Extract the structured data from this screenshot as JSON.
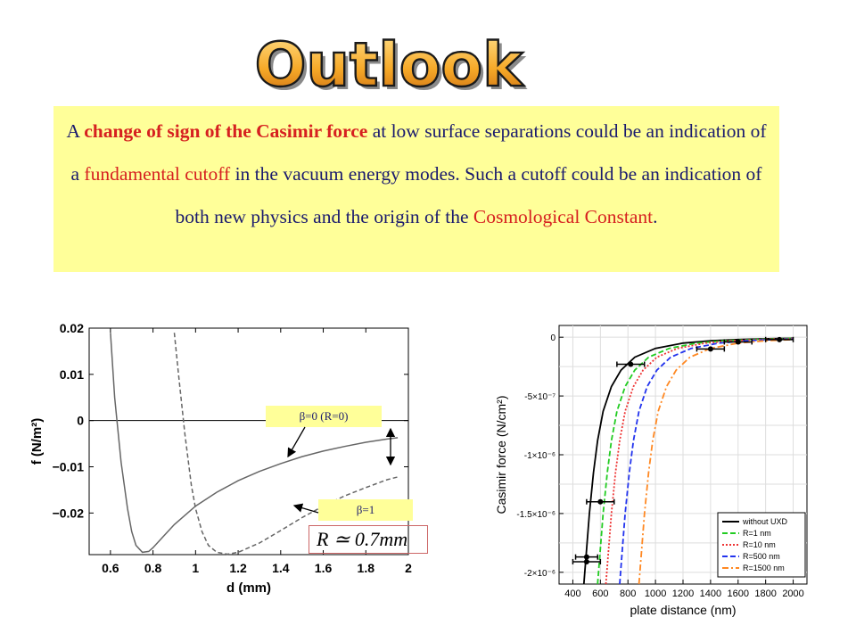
{
  "slide": {
    "title": "Outlook",
    "title_color": "#f0a030",
    "text_parts": {
      "p1": "A ",
      "p2": "change of sign of the Casimir force",
      "p3": " at low surface separations could be an indication of a ",
      "p4": "fundamental cutoff",
      "p5": " in the vacuum energy modes. Such a cutoff could be an indication of both new physics and the origin of the ",
      "p6": "Cosmological Constant",
      "p7": "."
    },
    "box_color": "#ffff99",
    "highlight_color": "#d62020",
    "label_beta0": "β=0  (R=0)",
    "label_beta1": "β=1",
    "label_R": "R ≃ 0.7mm"
  },
  "chart_data": [
    {
      "type": "line",
      "xlabel": "d (mm)",
      "ylabel": "f (N/m²)",
      "xlim": [
        0.5,
        2.0
      ],
      "ylim": [
        -0.029,
        0.02
      ],
      "xticks": [
        "0.6",
        "0.8",
        "1",
        "1.2",
        "1.4",
        "1.6",
        "1.8",
        "2"
      ],
      "yticks": [
        "0.02",
        "0.01",
        "0",
        "−0.01",
        "−0.02"
      ],
      "series": [
        {
          "name": "β=0  (R=0)",
          "style": "solid",
          "x": [
            0.6,
            0.62,
            0.65,
            0.68,
            0.7,
            0.72,
            0.75,
            0.78,
            0.8,
            0.85,
            0.9,
            1.0,
            1.1,
            1.2,
            1.3,
            1.4,
            1.5,
            1.6,
            1.7,
            1.8,
            1.9,
            1.95
          ],
          "y": [
            0.019,
            0.005,
            -0.009,
            -0.019,
            -0.024,
            -0.027,
            -0.0285,
            -0.0283,
            -0.0275,
            -0.025,
            -0.0225,
            -0.0185,
            -0.0155,
            -0.013,
            -0.011,
            -0.0093,
            -0.0078,
            -0.0066,
            -0.0056,
            -0.0047,
            -0.004,
            -0.0037
          ]
        },
        {
          "name": "β=1",
          "style": "dashed",
          "x": [
            0.9,
            0.92,
            0.95,
            0.98,
            1.0,
            1.03,
            1.06,
            1.1,
            1.15,
            1.2,
            1.3,
            1.4,
            1.5,
            1.6,
            1.7,
            1.8,
            1.9,
            1.95
          ],
          "y": [
            0.019,
            0.01,
            -0.003,
            -0.014,
            -0.019,
            -0.024,
            -0.027,
            -0.0285,
            -0.0289,
            -0.0285,
            -0.0265,
            -0.0238,
            -0.021,
            -0.0185,
            -0.0163,
            -0.0145,
            -0.0128,
            -0.0122
          ]
        }
      ]
    },
    {
      "type": "line",
      "xlabel": "plate distance (nm)",
      "ylabel": "Casimir force (N/cm²)",
      "xlim": [
        300,
        2100
      ],
      "ylim": [
        -2.1e-06,
        1e-07
      ],
      "xticks": [
        "400",
        "600",
        "800",
        "1000",
        "1200",
        "1400",
        "1600",
        "1800",
        "2000"
      ],
      "yticks": [
        "0",
        "-5×10⁻⁷",
        "-1×10⁻⁶",
        "-1.5×10⁻⁶",
        "-2×10⁻⁶"
      ],
      "legend": "bottom-right",
      "series": [
        {
          "name": "without UXD",
          "color": "#000000",
          "style": "solid",
          "x": [
            480,
            500,
            520,
            550,
            580,
            620,
            680,
            750,
            850,
            1000,
            1200,
            1400,
            1600,
            1800,
            2000
          ],
          "y": [
            -2.1e-06,
            -1.8e-06,
            -1.5e-06,
            -1.15e-06,
            -8.8e-07,
            -6.3e-07,
            -4.2e-07,
            -2.8e-07,
            -1.7e-07,
            -9.5e-08,
            -5e-08,
            -3e-08,
            -2e-08,
            -1.3e-08,
            -9e-09
          ]
        },
        {
          "name": "R=1 nm",
          "color": "#22cc22",
          "style": "dashed",
          "x": [
            580,
            600,
            620,
            650,
            680,
            720,
            780,
            850,
            950,
            1100,
            1300,
            1500,
            1700,
            1900,
            2000
          ],
          "y": [
            -2.1e-06,
            -1.8e-06,
            -1.5e-06,
            -1.15e-06,
            -8.8e-07,
            -6.3e-07,
            -4.2e-07,
            -2.8e-07,
            -1.7e-07,
            -9.5e-08,
            -5e-08,
            -3e-08,
            -2e-08,
            -1.3e-08,
            -1e-08
          ]
        },
        {
          "name": "R=10 nm",
          "color": "#ee3333",
          "style": "dotted",
          "x": [
            640,
            660,
            680,
            710,
            740,
            780,
            840,
            910,
            1010,
            1160,
            1360,
            1560,
            1760,
            1960,
            2000
          ],
          "y": [
            -2.1e-06,
            -1.8e-06,
            -1.5e-06,
            -1.15e-06,
            -8.8e-07,
            -6.3e-07,
            -4.2e-07,
            -2.8e-07,
            -1.7e-07,
            -9.5e-08,
            -5e-08,
            -3e-08,
            -2e-08,
            -1.3e-08,
            -1.2e-08
          ]
        },
        {
          "name": "R=500 nm",
          "color": "#2233ee",
          "style": "dashed",
          "x": [
            740,
            760,
            780,
            810,
            840,
            880,
            940,
            1010,
            1110,
            1260,
            1460,
            1660,
            1860,
            2000
          ],
          "y": [
            -2.1e-06,
            -1.8e-06,
            -1.5e-06,
            -1.15e-06,
            -8.8e-07,
            -6.3e-07,
            -4.2e-07,
            -2.8e-07,
            -1.7e-07,
            -9.5e-08,
            -5e-08,
            -3e-08,
            -2e-08,
            -1.5e-08
          ]
        },
        {
          "name": "R=1500 nm",
          "color": "#ff8822",
          "style": "dashdot",
          "x": [
            880,
            900,
            920,
            950,
            980,
            1020,
            1080,
            1150,
            1250,
            1400,
            1600,
            1800,
            2000
          ],
          "y": [
            -2.1e-06,
            -1.8e-06,
            -1.5e-06,
            -1.15e-06,
            -8.8e-07,
            -6.3e-07,
            -4.2e-07,
            -2.8e-07,
            -1.7e-07,
            -9.5e-08,
            -5e-08,
            -3e-08,
            -2e-08
          ]
        }
      ],
      "data_points": [
        {
          "x": 500,
          "y": -1.91e-06,
          "xerr": 100
        },
        {
          "x": 500,
          "y": -1.87e-06,
          "xerr": 80
        },
        {
          "x": 600,
          "y": -1.4e-06,
          "xerr": 100
        },
        {
          "x": 820,
          "y": -2.3e-07,
          "xerr": 100
        },
        {
          "x": 1400,
          "y": -1e-07,
          "xerr": 100
        },
        {
          "x": 1600,
          "y": -4e-08,
          "xerr": 100
        },
        {
          "x": 1900,
          "y": -2e-08,
          "xerr": 100
        }
      ]
    }
  ]
}
